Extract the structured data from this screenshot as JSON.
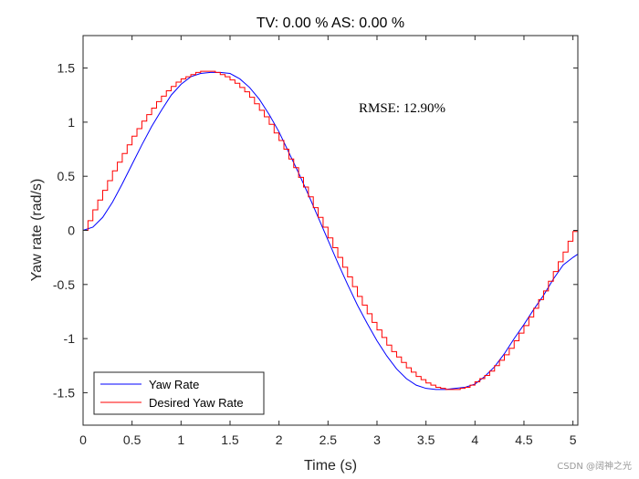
{
  "chart_data": {
    "type": "line",
    "title": "TV: 0.00 % AS: 0.00 %",
    "xlabel": "Time (s)",
    "ylabel": "Yaw rate (rad/s)",
    "xlim": [
      0,
      5.05
    ],
    "ylim": [
      -1.8,
      1.8
    ],
    "xticks": [
      0,
      0.5,
      1,
      1.5,
      2,
      2.5,
      3,
      3.5,
      4,
      4.5,
      5
    ],
    "xtick_labels": [
      "0",
      "0.5",
      "1",
      "1.5",
      "2",
      "2.5",
      "3",
      "3.5",
      "4",
      "4.5",
      "5"
    ],
    "yticks": [
      -1.5,
      -1,
      -0.5,
      0,
      0.5,
      1,
      1.5
    ],
    "ytick_labels": [
      "-1.5",
      "-1",
      "-0.5",
      "0",
      "0.5",
      "1",
      "1.5"
    ],
    "grid": false,
    "legend_position": "bottom-left",
    "annotation": "RMSE: 12.90%",
    "series": [
      {
        "name": "Yaw Rate",
        "color": "#0000ff",
        "style": "line",
        "x": [
          0,
          0.1,
          0.2,
          0.3,
          0.4,
          0.5,
          0.6,
          0.7,
          0.8,
          0.9,
          1.0,
          1.1,
          1.2,
          1.3,
          1.4,
          1.5,
          1.6,
          1.7,
          1.8,
          1.9,
          2.0,
          2.1,
          2.2,
          2.3,
          2.4,
          2.5,
          2.6,
          2.7,
          2.8,
          2.9,
          3.0,
          3.1,
          3.2,
          3.3,
          3.4,
          3.5,
          3.6,
          3.7,
          3.8,
          3.9,
          4.0,
          4.1,
          4.2,
          4.3,
          4.4,
          4.5,
          4.6,
          4.7,
          4.8,
          4.9,
          5.0,
          5.05
        ],
        "y": [
          0,
          0.03,
          0.12,
          0.26,
          0.43,
          0.61,
          0.79,
          0.96,
          1.11,
          1.25,
          1.35,
          1.42,
          1.45,
          1.46,
          1.46,
          1.45,
          1.4,
          1.32,
          1.21,
          1.07,
          0.91,
          0.72,
          0.53,
          0.33,
          0.12,
          -0.09,
          -0.3,
          -0.5,
          -0.69,
          -0.86,
          -1.02,
          -1.16,
          -1.28,
          -1.37,
          -1.43,
          -1.46,
          -1.47,
          -1.47,
          -1.46,
          -1.45,
          -1.42,
          -1.35,
          -1.26,
          -1.14,
          -1.0,
          -0.87,
          -0.73,
          -0.6,
          -0.45,
          -0.32,
          -0.25,
          -0.22
        ]
      },
      {
        "name": "Desired Yaw Rate",
        "color": "#ff0000",
        "style": "step",
        "x": [
          0,
          0.05,
          0.1,
          0.15,
          0.2,
          0.25,
          0.3,
          0.35,
          0.4,
          0.45,
          0.5,
          0.55,
          0.6,
          0.65,
          0.7,
          0.75,
          0.8,
          0.85,
          0.9,
          0.95,
          1.0,
          1.05,
          1.1,
          1.15,
          1.2,
          1.25,
          1.3,
          1.35,
          1.4,
          1.45,
          1.5,
          1.55,
          1.6,
          1.65,
          1.7,
          1.75,
          1.8,
          1.85,
          1.9,
          1.95,
          2.0,
          2.05,
          2.1,
          2.15,
          2.2,
          2.25,
          2.3,
          2.35,
          2.4,
          2.45,
          2.5,
          2.55,
          2.6,
          2.65,
          2.7,
          2.75,
          2.8,
          2.85,
          2.9,
          2.95,
          3.0,
          3.05,
          3.1,
          3.15,
          3.2,
          3.25,
          3.3,
          3.35,
          3.4,
          3.45,
          3.5,
          3.55,
          3.6,
          3.65,
          3.7,
          3.75,
          3.8,
          3.85,
          3.9,
          3.95,
          4.0,
          4.05,
          4.1,
          4.15,
          4.2,
          4.25,
          4.3,
          4.35,
          4.4,
          4.45,
          4.5,
          4.55,
          4.6,
          4.65,
          4.7,
          4.75,
          4.8,
          4.85,
          4.9,
          4.95,
          5.0,
          5.05
        ],
        "y": [
          0,
          0.09,
          0.19,
          0.28,
          0.37,
          0.46,
          0.55,
          0.63,
          0.71,
          0.79,
          0.87,
          0.94,
          1.01,
          1.07,
          1.13,
          1.19,
          1.24,
          1.29,
          1.33,
          1.37,
          1.4,
          1.42,
          1.44,
          1.46,
          1.47,
          1.47,
          1.47,
          1.46,
          1.44,
          1.42,
          1.39,
          1.36,
          1.32,
          1.28,
          1.23,
          1.17,
          1.11,
          1.05,
          0.98,
          0.9,
          0.83,
          0.75,
          0.66,
          0.58,
          0.49,
          0.4,
          0.31,
          0.21,
          0.12,
          0.03,
          -0.07,
          -0.16,
          -0.25,
          -0.34,
          -0.43,
          -0.52,
          -0.61,
          -0.69,
          -0.77,
          -0.85,
          -0.92,
          -0.99,
          -1.06,
          -1.12,
          -1.17,
          -1.22,
          -1.27,
          -1.31,
          -1.35,
          -1.38,
          -1.41,
          -1.43,
          -1.45,
          -1.46,
          -1.47,
          -1.47,
          -1.47,
          -1.46,
          -1.45,
          -1.43,
          -1.4,
          -1.37,
          -1.34,
          -1.3,
          -1.25,
          -1.2,
          -1.15,
          -1.09,
          -1.02,
          -0.95,
          -0.88,
          -0.8,
          -0.72,
          -0.64,
          -0.56,
          -0.47,
          -0.38,
          -0.29,
          -0.2,
          -0.1,
          -0.01,
          0.07
        ]
      }
    ]
  },
  "watermark": "CSDN @阔神之光"
}
